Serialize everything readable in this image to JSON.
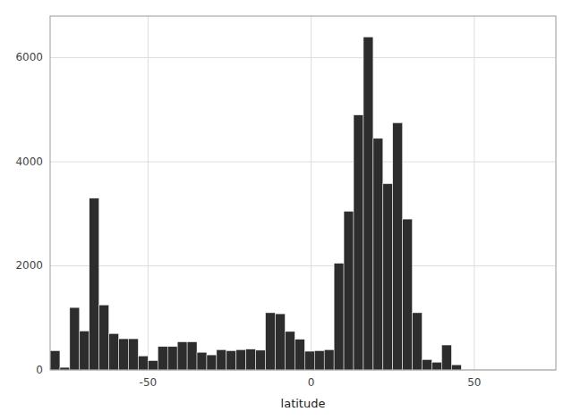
{
  "chart_data": {
    "type": "histogram",
    "bins": [
      -80,
      -77,
      -74,
      -71,
      -68,
      -65,
      -62,
      -59,
      -56,
      -53,
      -50,
      -47,
      -44,
      -41,
      -38,
      -35,
      -32,
      -29,
      -26,
      -23,
      -20,
      -17,
      -14,
      -11,
      -8,
      -5,
      -2,
      1,
      4,
      7,
      10,
      13,
      16,
      19,
      22,
      25,
      28,
      31,
      34,
      37,
      40,
      43,
      46,
      49,
      52,
      55,
      58,
      61,
      64,
      67,
      70,
      73,
      76
    ],
    "values": [
      370,
      50,
      1200,
      750,
      3300,
      1250,
      700,
      600,
      600,
      270,
      180,
      450,
      450,
      540,
      540,
      340,
      290,
      390,
      370,
      390,
      400,
      380,
      1100,
      1080,
      740,
      590,
      360,
      370,
      390,
      2050,
      3050,
      4900,
      6400,
      4450,
      3580,
      4750,
      2900,
      1100,
      200,
      150,
      480,
      100,
      0,
      0,
      0,
      0,
      0,
      0,
      0,
      0,
      0,
      0
    ],
    "color": "#2d2d2d",
    "xlabel": "latitude",
    "xlim": [
      -80,
      75
    ],
    "ylim": [
      0,
      6800
    ],
    "xticks": [
      -50,
      0,
      50
    ],
    "yticks": [
      0,
      2000,
      4000,
      6000
    ],
    "grid": true
  }
}
